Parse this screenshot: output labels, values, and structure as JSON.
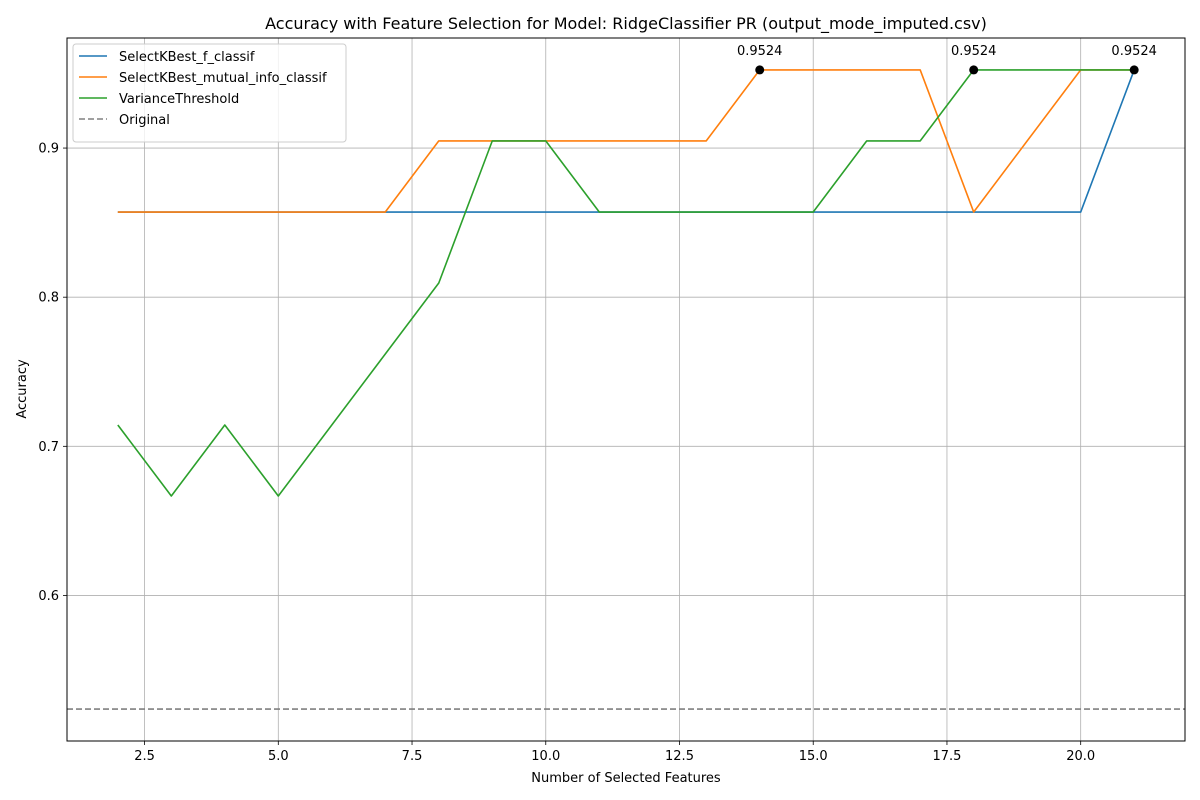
{
  "chart_data": {
    "type": "line",
    "title": "Accuracy with Feature Selection for Model: RidgeClassifier PR (output_mode_imputed.csv)",
    "xlabel": "Number of Selected Features",
    "ylabel": "Accuracy",
    "xlim": [
      1.05,
      21.95
    ],
    "ylim": [
      0.5024,
      0.9738
    ],
    "xticks": [
      2.5,
      5.0,
      7.5,
      10.0,
      12.5,
      15.0,
      17.5,
      20.0
    ],
    "xtick_labels": [
      "2.5",
      "5.0",
      "7.5",
      "10.0",
      "12.5",
      "15.0",
      "17.5",
      "20.0"
    ],
    "yticks": [
      0.6,
      0.7,
      0.8,
      0.9
    ],
    "ytick_labels": [
      "0.6",
      "0.7",
      "0.8",
      "0.9"
    ],
    "grid": true,
    "legend_position": "top-left",
    "x": [
      2,
      3,
      4,
      5,
      6,
      7,
      8,
      9,
      10,
      11,
      12,
      13,
      14,
      15,
      16,
      17,
      18,
      19,
      20,
      21
    ],
    "series": [
      {
        "name": "SelectKBest_f_classif",
        "color": "#1f77b4",
        "style": "solid",
        "values": [
          0.8571,
          0.8571,
          0.8571,
          0.8571,
          0.8571,
          0.8571,
          0.8571,
          0.8571,
          0.8571,
          0.8571,
          0.8571,
          0.8571,
          0.8571,
          0.8571,
          0.8571,
          0.8571,
          0.8571,
          0.8571,
          0.8571,
          0.9524
        ]
      },
      {
        "name": "SelectKBest_mutual_info_classif",
        "color": "#ff7f0e",
        "style": "solid",
        "values": [
          0.8571,
          0.8571,
          0.8571,
          0.8571,
          0.8571,
          0.8571,
          0.9048,
          0.9048,
          0.9048,
          0.9048,
          0.9048,
          0.9048,
          0.9524,
          0.9524,
          0.9524,
          0.9524,
          0.8571,
          0.9048,
          0.9524,
          0.9524
        ]
      },
      {
        "name": "VarianceThreshold",
        "color": "#2ca02c",
        "style": "solid",
        "values": [
          0.7143,
          0.6667,
          0.7143,
          0.6667,
          0.7143,
          0.7619,
          0.8095,
          0.9048,
          0.9048,
          0.8571,
          0.8571,
          0.8571,
          0.8571,
          0.8571,
          0.9048,
          0.9048,
          0.9524,
          0.9524,
          0.9524,
          0.9524
        ]
      },
      {
        "name": "Original",
        "color": "#808080",
        "style": "dashed",
        "hline": 0.5238
      }
    ],
    "max_points": [
      {
        "x": 21,
        "y": 0.9524,
        "label": "0.9524"
      },
      {
        "x": 14,
        "y": 0.9524,
        "label": "0.9524"
      },
      {
        "x": 18,
        "y": 0.9524,
        "label": "0.9524"
      }
    ]
  }
}
